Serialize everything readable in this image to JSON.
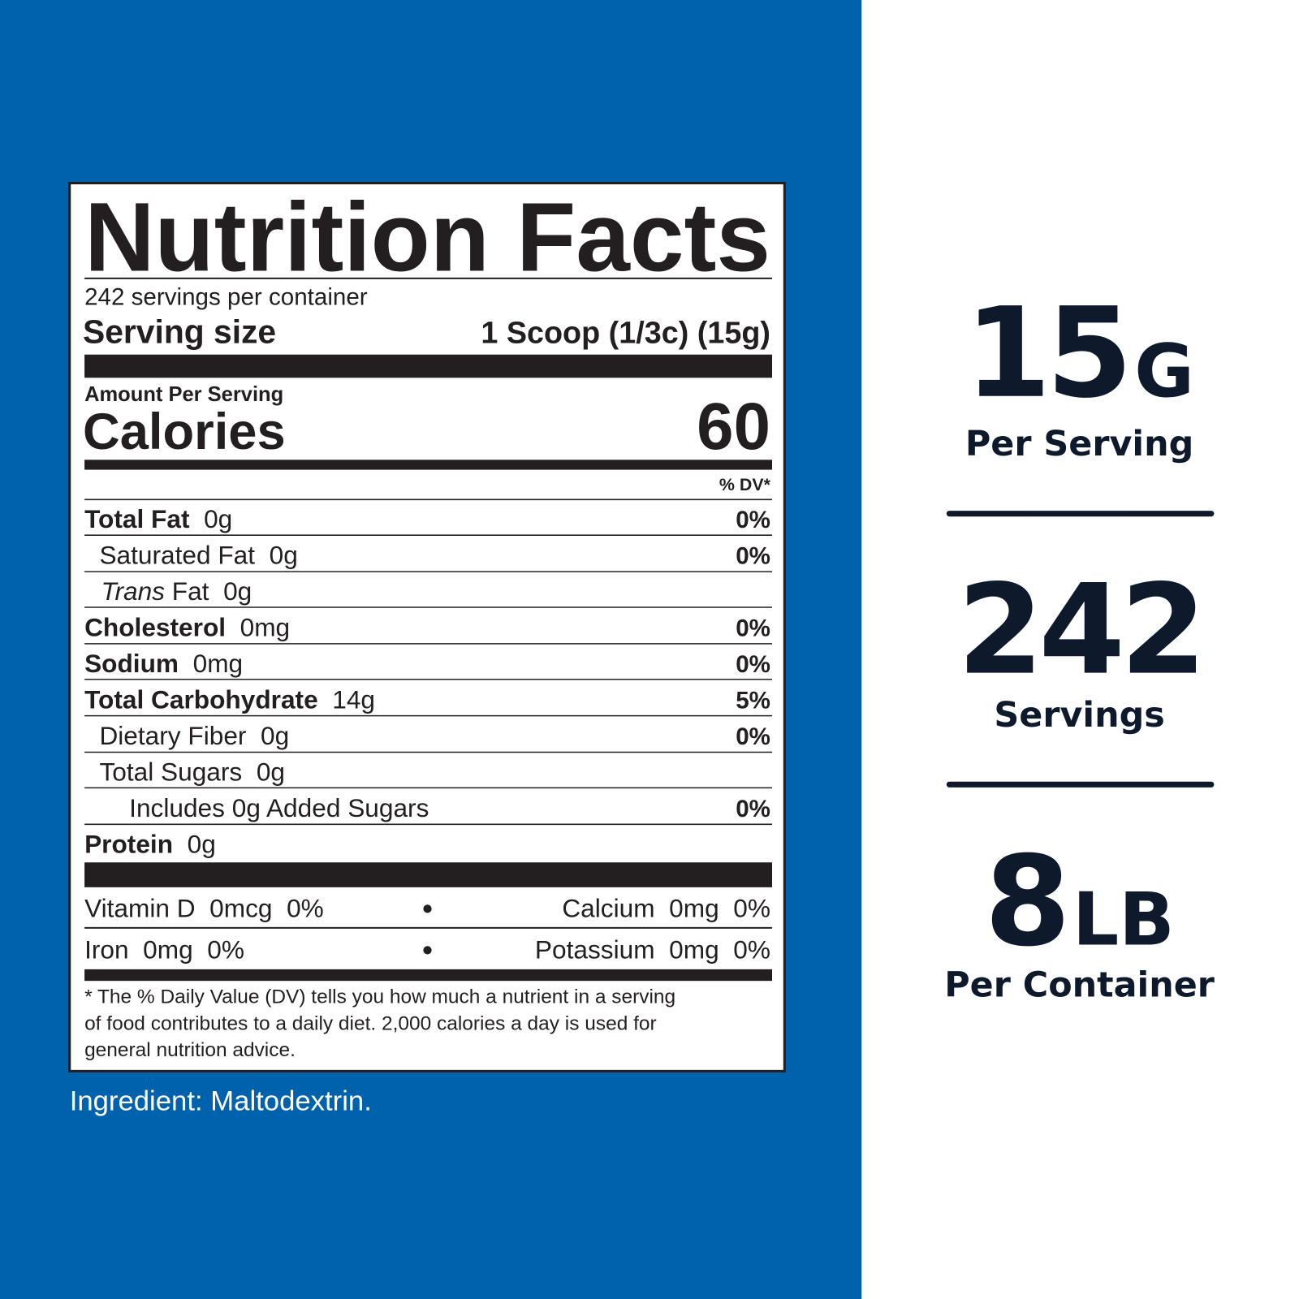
{
  "label": {
    "title": "Nutrition Facts",
    "servings": "242 servings per container",
    "serving_size_label": "Serving size",
    "serving_size": "1 Scoop (1/3c) (15g)",
    "amount_per_serving": "Amount Per Serving",
    "calories_label": "Calories",
    "calories": "60",
    "dv_header": "% DV*",
    "nutrients": [
      {
        "name": "Total Fat",
        "amount": "0g",
        "dv": "0%"
      },
      {
        "name": "Saturated Fat",
        "amount": "0g",
        "dv": "0%"
      },
      {
        "name_italic": "Trans",
        "name": "Fat",
        "amount": "0g"
      },
      {
        "name": "Cholesterol",
        "amount": "0mg",
        "dv": "0%"
      },
      {
        "name": "Sodium",
        "amount": "0mg",
        "dv": "0%"
      },
      {
        "name": "Total Carbohydrate",
        "amount": "14g",
        "dv": "5%"
      },
      {
        "name": "Dietary Fiber",
        "amount": "0g",
        "dv": "0%"
      },
      {
        "name": "Total Sugars",
        "amount": "0g"
      },
      {
        "name": "Includes 0g Added Sugars",
        "dv": "0%"
      },
      {
        "name": "Protein",
        "amount": "0g"
      }
    ],
    "vitamins": [
      {
        "name": "Vitamin D",
        "amount": "0mcg",
        "dv": "0%"
      },
      {
        "name": "Calcium",
        "amount": "0mg",
        "dv": "0%"
      },
      {
        "name": "Iron",
        "amount": "0mg",
        "dv": "0%"
      },
      {
        "name": "Potassium",
        "amount": "0mg",
        "dv": "0%"
      }
    ],
    "footnote": [
      "* The % Daily Value (DV) tells you how much a nutrient in a serving",
      "of food contributes to a daily diet. 2,000 calories a day is used for",
      "general nutrition advice."
    ]
  },
  "ingredients": "Ingredient: Maltodextrin.",
  "stats": [
    {
      "value": "15",
      "unit": "G",
      "label": "Per Serving"
    },
    {
      "value": "242",
      "label": "Servings"
    },
    {
      "value": "8",
      "unit": "LB",
      "label": "Per Container"
    }
  ]
}
